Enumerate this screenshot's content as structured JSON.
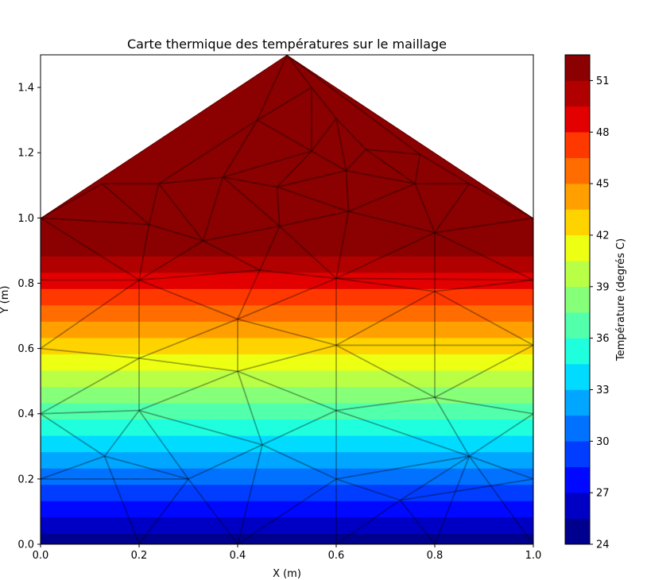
{
  "chart_data": {
    "type": "heatmap",
    "title": "Carte thermique des températures sur le maillage",
    "xlabel": "X (m)",
    "ylabel": "Y (m)",
    "xlim": [
      0.0,
      1.0
    ],
    "ylim": [
      0.0,
      1.5
    ],
    "x_ticks": [
      "0.0",
      "0.2",
      "0.4",
      "0.6",
      "0.8",
      "1.0"
    ],
    "y_ticks": [
      "0.0",
      "0.2",
      "0.4",
      "0.6",
      "0.8",
      "1.0",
      "1.2",
      "1.4"
    ],
    "domain_outline": [
      [
        0,
        0
      ],
      [
        1,
        0
      ],
      [
        1,
        1
      ],
      [
        0.5,
        1.5
      ],
      [
        0,
        1
      ]
    ],
    "temperature_model": {
      "at_y0": 24.5,
      "gradient_per_m": 30
    },
    "colorbar": {
      "label": "Température (degrés C)",
      "min": 24,
      "max": 52.5,
      "step": 1.5,
      "ticks": [
        "24",
        "27",
        "30",
        "33",
        "36",
        "39",
        "42",
        "45",
        "48",
        "51"
      ],
      "colors": [
        "#00008f",
        "#0000c4",
        "#0008ff",
        "#003dff",
        "#0072ff",
        "#00a6ff",
        "#00dbff",
        "#1fffde",
        "#52ffab",
        "#86ff79",
        "#b9ff46",
        "#edff13",
        "#ffd300",
        "#ffa000",
        "#ff6c00",
        "#ff3800",
        "#e30000",
        "#b10000",
        "#8b0000"
      ]
    },
    "mesh_nodes": [
      [
        0.0,
        0.0
      ],
      [
        0.2,
        0.0
      ],
      [
        0.4,
        0.0
      ],
      [
        0.6,
        0.0
      ],
      [
        0.8,
        0.0
      ],
      [
        1.0,
        0.0
      ],
      [
        0.0,
        0.2
      ],
      [
        0.0,
        0.4
      ],
      [
        0.0,
        0.6
      ],
      [
        0.0,
        0.81
      ],
      [
        0.0,
        1.0
      ],
      [
        1.0,
        0.2
      ],
      [
        1.0,
        0.4
      ],
      [
        1.0,
        0.61
      ],
      [
        1.0,
        0.81
      ],
      [
        1.0,
        1.0
      ],
      [
        0.5,
        1.5
      ],
      [
        0.13,
        0.27
      ],
      [
        0.3,
        0.2
      ],
      [
        0.6,
        0.2
      ],
      [
        0.73,
        0.135
      ],
      [
        0.87,
        0.27
      ],
      [
        0.2,
        0.41
      ],
      [
        0.45,
        0.305
      ],
      [
        0.6,
        0.41
      ],
      [
        0.8,
        0.45
      ],
      [
        0.2,
        0.57
      ],
      [
        0.4,
        0.53
      ],
      [
        0.6,
        0.61
      ],
      [
        0.2,
        0.81
      ],
      [
        0.4,
        0.69
      ],
      [
        0.8,
        0.775
      ],
      [
        0.6,
        0.815
      ],
      [
        0.445,
        0.84
      ],
      [
        0.33,
        0.93
      ],
      [
        0.22,
        0.98
      ],
      [
        0.485,
        0.975
      ],
      [
        0.625,
        1.02
      ],
      [
        0.8,
        0.955
      ],
      [
        0.37,
        1.125
      ],
      [
        0.24,
        1.105
      ],
      [
        0.125,
        1.105
      ],
      [
        0.48,
        1.095
      ],
      [
        0.55,
        1.205
      ],
      [
        0.62,
        1.145
      ],
      [
        0.76,
        1.105
      ],
      [
        0.87,
        1.105
      ],
      [
        0.44,
        1.3
      ],
      [
        0.6,
        1.305
      ],
      [
        0.55,
        1.4
      ],
      [
        0.66,
        1.21
      ],
      [
        0.77,
        1.195
      ]
    ],
    "mesh_edges": [
      [
        0,
        1
      ],
      [
        1,
        2
      ],
      [
        2,
        3
      ],
      [
        3,
        4
      ],
      [
        4,
        5
      ],
      [
        0,
        6
      ],
      [
        6,
        7
      ],
      [
        7,
        8
      ],
      [
        8,
        9
      ],
      [
        9,
        10
      ],
      [
        5,
        11
      ],
      [
        11,
        12
      ],
      [
        12,
        13
      ],
      [
        13,
        14
      ],
      [
        14,
        15
      ],
      [
        10,
        16
      ],
      [
        16,
        15
      ],
      [
        6,
        17
      ],
      [
        17,
        1
      ],
      [
        17,
        18
      ],
      [
        18,
        1
      ],
      [
        18,
        2
      ],
      [
        6,
        18
      ],
      [
        7,
        17
      ],
      [
        17,
        22
      ],
      [
        7,
        22
      ],
      [
        22,
        18
      ],
      [
        18,
        23
      ],
      [
        23,
        2
      ],
      [
        22,
        23
      ],
      [
        23,
        19
      ],
      [
        19,
        2
      ],
      [
        19,
        3
      ],
      [
        19,
        20
      ],
      [
        20,
        3
      ],
      [
        20,
        4
      ],
      [
        20,
        21
      ],
      [
        21,
        4
      ],
      [
        21,
        11
      ],
      [
        21,
        5
      ],
      [
        20,
        11
      ],
      [
        19,
        21
      ],
      [
        23,
        24
      ],
      [
        24,
        19
      ],
      [
        24,
        21
      ],
      [
        24,
        25
      ],
      [
        25,
        21
      ],
      [
        25,
        12
      ],
      [
        12,
        21
      ],
      [
        22,
        26
      ],
      [
        26,
        7
      ],
      [
        26,
        8
      ],
      [
        22,
        27
      ],
      [
        27,
        23
      ],
      [
        27,
        24
      ],
      [
        26,
        27
      ],
      [
        27,
        28
      ],
      [
        28,
        24
      ],
      [
        28,
        25
      ],
      [
        25,
        13
      ],
      [
        13,
        28
      ],
      [
        8,
        29
      ],
      [
        29,
        26
      ],
      [
        26,
        30
      ],
      [
        30,
        27
      ],
      [
        29,
        30
      ],
      [
        30,
        28
      ],
      [
        28,
        32
      ],
      [
        32,
        30
      ],
      [
        28,
        31
      ],
      [
        31,
        25
      ],
      [
        31,
        13
      ],
      [
        31,
        14
      ],
      [
        31,
        32
      ],
      [
        32,
        14
      ],
      [
        9,
        29
      ],
      [
        29,
        33
      ],
      [
        33,
        30
      ],
      [
        33,
        32
      ],
      [
        29,
        34
      ],
      [
        34,
        33
      ],
      [
        29,
        35
      ],
      [
        35,
        34
      ],
      [
        35,
        10
      ],
      [
        10,
        29
      ],
      [
        33,
        36
      ],
      [
        36,
        34
      ],
      [
        36,
        32
      ],
      [
        32,
        37
      ],
      [
        37,
        36
      ],
      [
        32,
        38
      ],
      [
        38,
        37
      ],
      [
        38,
        31
      ],
      [
        38,
        14
      ],
      [
        38,
        15
      ],
      [
        34,
        39
      ],
      [
        39,
        36
      ],
      [
        35,
        40
      ],
      [
        40,
        34
      ],
      [
        40,
        39
      ],
      [
        35,
        41
      ],
      [
        41,
        10
      ],
      [
        41,
        40
      ],
      [
        36,
        42
      ],
      [
        42,
        39
      ],
      [
        42,
        37
      ],
      [
        37,
        44
      ],
      [
        44,
        42
      ],
      [
        44,
        43
      ],
      [
        43,
        42
      ],
      [
        43,
        39
      ],
      [
        37,
        45
      ],
      [
        45,
        44
      ],
      [
        45,
        38
      ],
      [
        46,
        38
      ],
      [
        46,
        15
      ],
      [
        46,
        45
      ],
      [
        39,
        47
      ],
      [
        47,
        43
      ],
      [
        40,
        47
      ],
      [
        47,
        16
      ],
      [
        43,
        48
      ],
      [
        48,
        44
      ],
      [
        48,
        49
      ],
      [
        49,
        16
      ],
      [
        47,
        49
      ],
      [
        49,
        43
      ],
      [
        48,
        50
      ],
      [
        50,
        44
      ],
      [
        50,
        45
      ],
      [
        50,
        51
      ],
      [
        51,
        45
      ],
      [
        51,
        46
      ],
      [
        51,
        16
      ]
    ]
  }
}
